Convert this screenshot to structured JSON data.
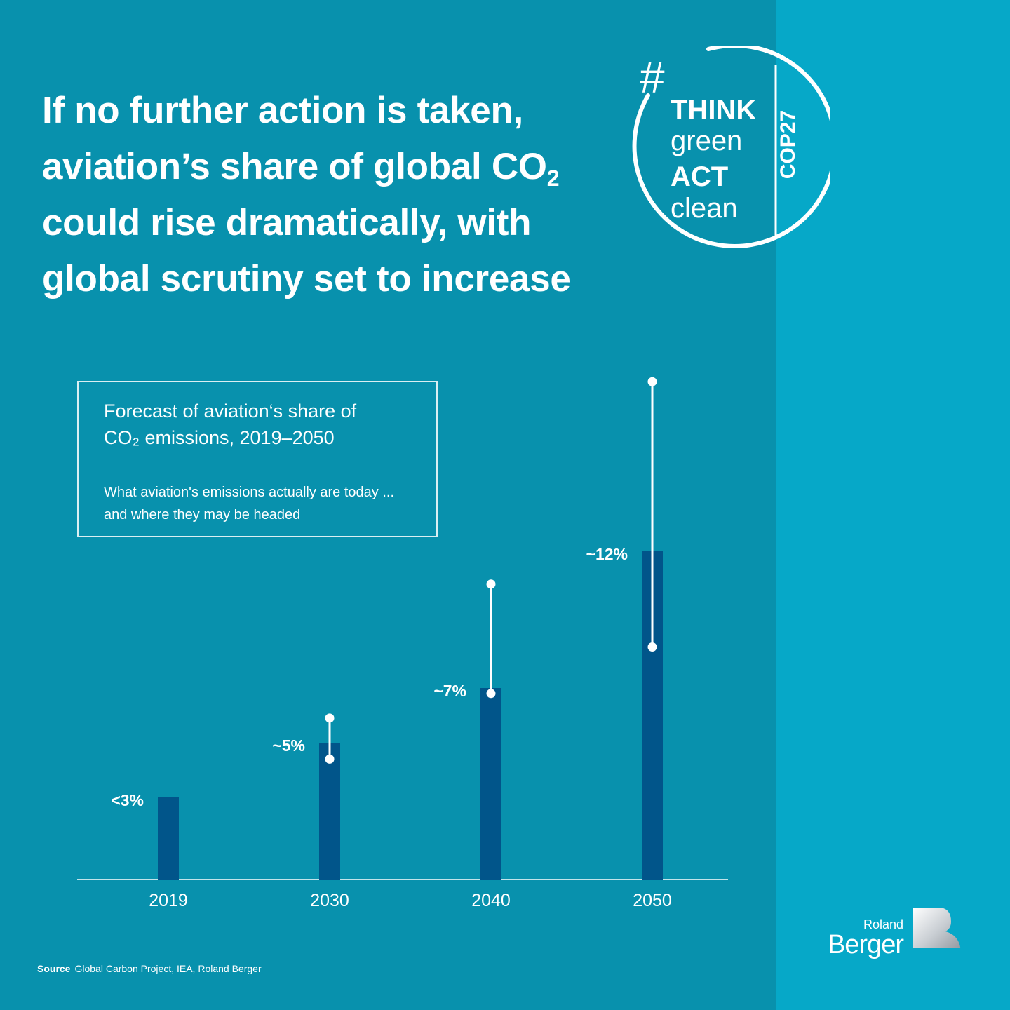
{
  "headline": {
    "line1": "If no further action is taken,",
    "line2": "aviation’s share of global CO",
    "line2_sub": "2",
    "line3": "could rise dramatically, with",
    "line4": "global scrutiny set to increase"
  },
  "badge": {
    "hash": "#",
    "think": "THINK",
    "green": "green",
    "act": "ACT",
    "clean": "clean",
    "cop": "COP27"
  },
  "info": {
    "title_line1": "Forecast of aviation‘s share of",
    "title_line2": "CO₂ emissions, 2019–2050",
    "desc_line1": "What aviation's emissions actually are today ...",
    "desc_line2": "and where they may be headed"
  },
  "source": {
    "label": "Source",
    "text": "Global Carbon Project, IEA, Roland Berger"
  },
  "logo": {
    "roland": "Roland",
    "berger": "Berger"
  },
  "colors": {
    "background": "#0891ad",
    "right_band": "#06a8c8",
    "bar": "#01558a",
    "text": "#ffffff"
  },
  "chart_data": {
    "type": "bar",
    "title": "Forecast of aviation‘s share of CO₂ emissions, 2019–2050",
    "categories": [
      "2019",
      "2030",
      "2040",
      "2050"
    ],
    "values": [
      3,
      5,
      7,
      12
    ],
    "data_labels": [
      "<3%",
      "~5%",
      "~7%",
      "~12%"
    ],
    "ranges": [
      null,
      [
        4.4,
        5.9
      ],
      [
        6.8,
        10.8
      ],
      [
        8.5,
        18.2
      ]
    ],
    "unit": "%",
    "xlabel": "",
    "ylabel": "",
    "ylim": [
      0,
      20
    ],
    "grid": false
  }
}
